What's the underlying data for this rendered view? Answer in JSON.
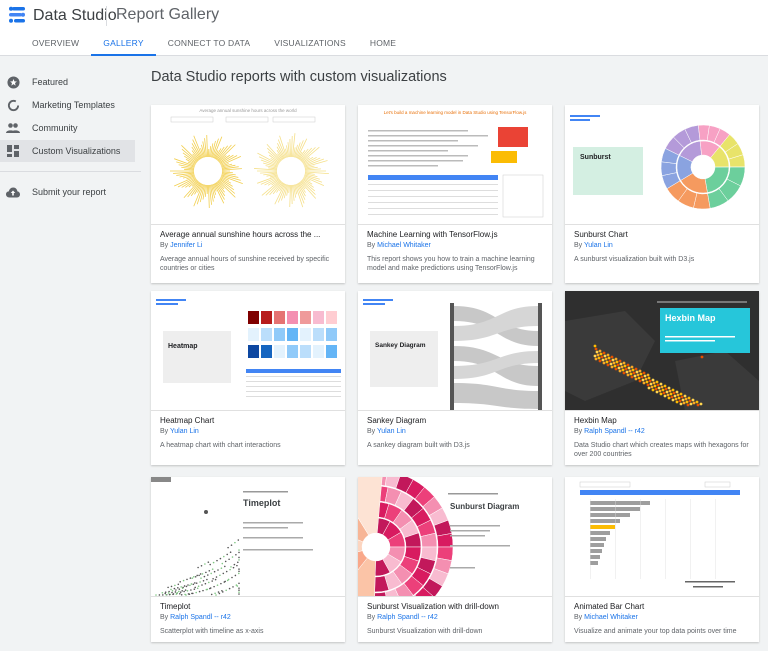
{
  "header": {
    "app_name": "Data Studio",
    "page_title": "Report Gallery"
  },
  "tabs": [
    {
      "label": "OVERVIEW",
      "active": false
    },
    {
      "label": "GALLERY",
      "active": true
    },
    {
      "label": "CONNECT TO DATA",
      "active": false
    },
    {
      "label": "VISUALIZATIONS",
      "active": false
    },
    {
      "label": "HOME",
      "active": false
    }
  ],
  "sidebar": {
    "items": [
      {
        "label": "Featured",
        "icon": "star-icon"
      },
      {
        "label": "Marketing Templates",
        "icon": "circle-progress-icon"
      },
      {
        "label": "Community",
        "icon": "people-icon"
      },
      {
        "label": "Custom Visualizations",
        "icon": "dashboard-icon",
        "active": true
      }
    ],
    "submit_label": "Submit your report"
  },
  "main": {
    "title": "Data Studio reports with custom visualizations"
  },
  "cards": [
    {
      "title": "Average annual sunshine hours across the ...",
      "by": "By",
      "author": "Jennifer Li",
      "desc": "Average annual hours of sunshine received by specific countries or cities",
      "thumb_title": "Average annual sunshine hours across the world"
    },
    {
      "title": "Machine Learning with TensorFlow.js",
      "by": "By",
      "author": "Michael Whitaker",
      "desc": "This report shows you how to train a machine learning model and make predictions using TensorFlow.js",
      "thumb_title": "Let's build a machine learning model in Data Studio using TensorFlow.js"
    },
    {
      "title": "Sunburst Chart",
      "by": "By",
      "author": "Yulan Lin",
      "desc": "A sunburst visualization built with D3.js",
      "thumb_title": "Sunburst"
    },
    {
      "title": "Heatmap Chart",
      "by": "By",
      "author": "Yulan Lin",
      "desc": "A heatmap chart with chart interactions",
      "thumb_title": "Heatmap"
    },
    {
      "title": "Sankey Diagram",
      "by": "By",
      "author": "Yulan Lin",
      "desc": "A sankey diagram built with D3.js",
      "thumb_title": "Sankey Diagram"
    },
    {
      "title": "Hexbin Map",
      "by": "By",
      "author": "Ralph Spandl -- r42",
      "desc": "Data Studio chart which creates maps with hexagons for over 200 countries",
      "thumb_title": "Hexbin Map"
    },
    {
      "title": "Timeplot",
      "by": "By",
      "author": "Ralph Spandl -- r42",
      "desc": "Scatterplot with timeline as x-axis",
      "thumb_title": "Timeplot"
    },
    {
      "title": "Sunburst Visualization with drill-down",
      "by": "By",
      "author": "Ralph Spandl -- r42",
      "desc": "Sunburst Visualization with drill-down",
      "thumb_title": "Sunburst Diagram"
    },
    {
      "title": "Animated Bar Chart",
      "by": "By",
      "author": "Michael Whitaker",
      "desc": "Visualize and animate your top data points over time",
      "thumb_title": ""
    }
  ],
  "colors": {
    "accent": "#1a73e8",
    "background": "#f1f3f4"
  }
}
